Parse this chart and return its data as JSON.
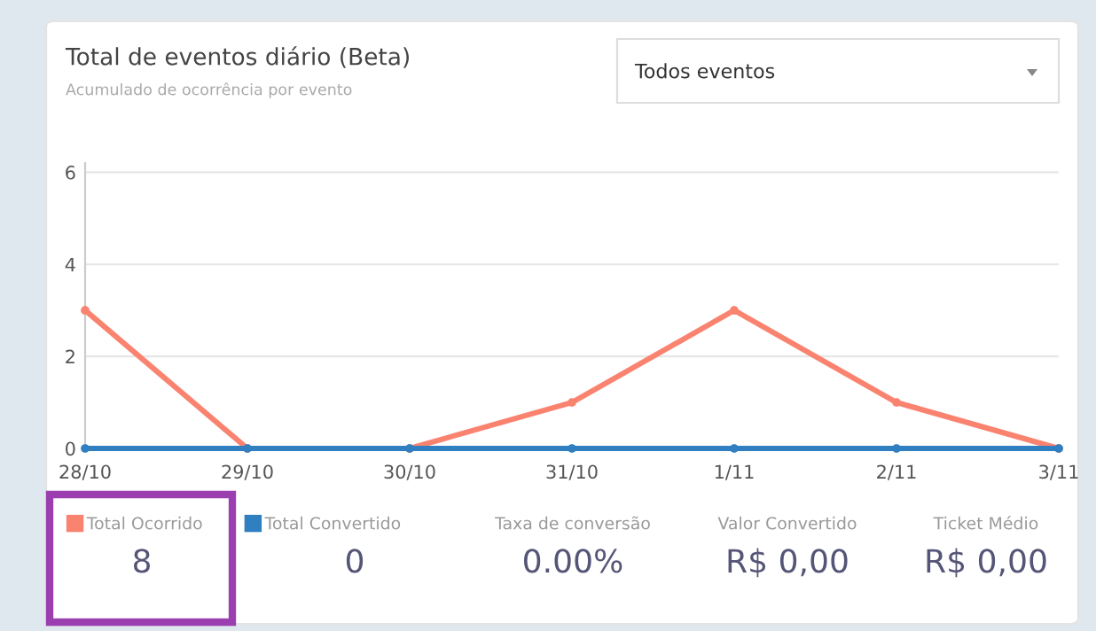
{
  "chart_data": {
    "type": "line",
    "title": "Total de eventos diário (Beta)",
    "subtitle": "Acumulado de ocorrência por evento",
    "categories": [
      "28/10",
      "29/10",
      "30/10",
      "31/10",
      "1/11",
      "2/11",
      "3/11"
    ],
    "series": [
      {
        "name": "Total Ocorrido",
        "color": "#fa8370",
        "values": [
          3,
          0,
          0,
          1,
          3,
          1,
          0
        ]
      },
      {
        "name": "Total Convertido",
        "color": "#2f7fc1",
        "values": [
          0,
          0,
          0,
          0,
          0,
          0,
          0
        ]
      }
    ],
    "ylim": [
      0,
      6.2
    ],
    "yticks": [
      0,
      2,
      4,
      6
    ],
    "grid": "y",
    "legend": "bottom",
    "marker": "circle",
    "annotations": [
      "Todos eventos",
      "8",
      "0",
      "Taxa de conversão",
      "0.00%",
      "Valor Convertido",
      "R$ 0,00",
      "Ticket Médio",
      "R$ 0,00"
    ]
  }
}
